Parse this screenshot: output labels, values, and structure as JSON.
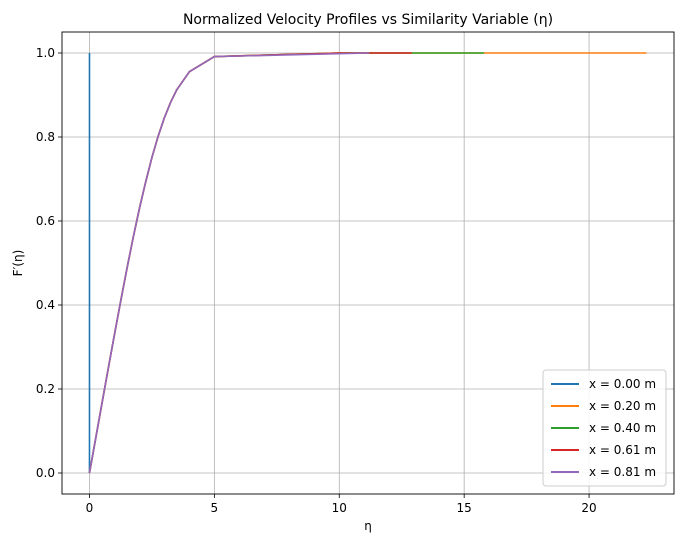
{
  "chart_data": {
    "type": "line",
    "title": "Normalized Velocity Profiles vs Similarity Variable (η)",
    "xlabel": "η",
    "ylabel": "F′(η)",
    "xlim": [
      -1.1,
      23.4
    ],
    "ylim": [
      -0.05,
      1.05
    ],
    "xticks": [
      0,
      5,
      10,
      15,
      20
    ],
    "xtick_labels": [
      "0",
      "5",
      "10",
      "15",
      "20"
    ],
    "yticks": [
      0.0,
      0.2,
      0.4,
      0.6,
      0.8,
      1.0
    ],
    "ytick_labels": [
      "0.0",
      "0.2",
      "0.4",
      "0.6",
      "0.8",
      "1.0"
    ],
    "grid": true,
    "legend_position": "lower right",
    "series": [
      {
        "name": "x = 0.00 m",
        "color": "#1f77b4",
        "x": [
          0,
          0
        ],
        "y": [
          0,
          1
        ]
      },
      {
        "name": "x = 0.20 m",
        "color": "#ff7f0e",
        "x": [
          0,
          0.25,
          0.5,
          0.75,
          1.0,
          1.25,
          1.5,
          1.75,
          2.0,
          2.25,
          2.5,
          2.75,
          3.0,
          3.25,
          3.5,
          4.0,
          5.0,
          10.0,
          15.0,
          22.3
        ],
        "y": [
          0,
          0.0829,
          0.1659,
          0.2483,
          0.3298,
          0.4094,
          0.4868,
          0.5607,
          0.6298,
          0.693,
          0.7513,
          0.802,
          0.846,
          0.8829,
          0.913,
          0.9555,
          0.9915,
          1.0,
          1.0,
          1.0
        ]
      },
      {
        "name": "x = 0.40 m",
        "color": "#2ca02c",
        "x": [
          0,
          0.25,
          0.5,
          0.75,
          1.0,
          1.25,
          1.5,
          1.75,
          2.0,
          2.25,
          2.5,
          2.75,
          3.0,
          3.25,
          3.5,
          4.0,
          5.0,
          10.0,
          15.8
        ],
        "y": [
          0,
          0.0829,
          0.1659,
          0.2483,
          0.3298,
          0.4094,
          0.4868,
          0.5607,
          0.6298,
          0.693,
          0.7513,
          0.802,
          0.846,
          0.8829,
          0.913,
          0.9555,
          0.9915,
          1.0,
          1.0
        ]
      },
      {
        "name": "x = 0.61 m",
        "color": "#d62728",
        "x": [
          0,
          0.25,
          0.5,
          0.75,
          1.0,
          1.25,
          1.5,
          1.75,
          2.0,
          2.25,
          2.5,
          2.75,
          3.0,
          3.25,
          3.5,
          4.0,
          5.0,
          10.0,
          12.9
        ],
        "y": [
          0,
          0.0829,
          0.1659,
          0.2483,
          0.3298,
          0.4094,
          0.4868,
          0.5607,
          0.6298,
          0.693,
          0.7513,
          0.802,
          0.846,
          0.8829,
          0.913,
          0.9555,
          0.9915,
          1.0,
          1.0
        ]
      },
      {
        "name": "x = 0.81 m",
        "color": "#9467bd",
        "x": [
          0,
          0.25,
          0.5,
          0.75,
          1.0,
          1.25,
          1.5,
          1.75,
          2.0,
          2.25,
          2.5,
          2.75,
          3.0,
          3.25,
          3.5,
          4.0,
          5.0,
          11.2
        ],
        "y": [
          0,
          0.0829,
          0.1659,
          0.2483,
          0.3298,
          0.4094,
          0.4868,
          0.5607,
          0.6298,
          0.693,
          0.7513,
          0.802,
          0.846,
          0.8829,
          0.913,
          0.9555,
          0.9915,
          1.0
        ]
      }
    ]
  }
}
